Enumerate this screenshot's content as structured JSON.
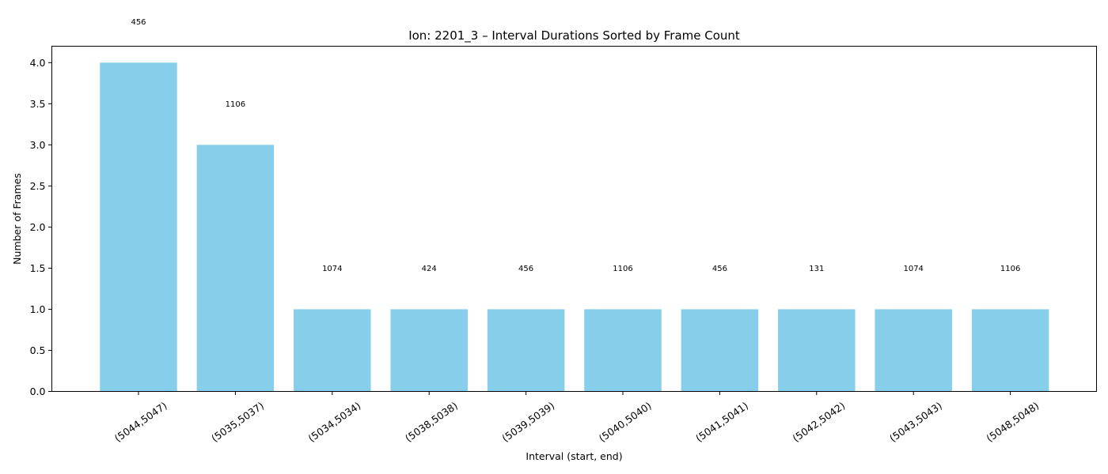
{
  "chart_data": {
    "type": "bar",
    "title": "Ion: 2201_3 – Interval Durations Sorted by Frame Count",
    "xlabel": "Interval (start, end)",
    "ylabel": "Number of Frames",
    "categories": [
      "(5044,5047)",
      "(5035,5037)",
      "(5034,5034)",
      "(5038,5038)",
      "(5039,5039)",
      "(5040,5040)",
      "(5041,5041)",
      "(5042,5042)",
      "(5043,5043)",
      "(5048,5048)"
    ],
    "values": [
      4,
      3,
      1,
      1,
      1,
      1,
      1,
      1,
      1,
      1
    ],
    "data_labels": [
      "456",
      "1106",
      "1074",
      "424",
      "456",
      "1106",
      "456",
      "131",
      "1074",
      "1106"
    ],
    "yticks": [
      "0.0",
      "0.5",
      "1.0",
      "1.5",
      "2.0",
      "2.5",
      "3.0",
      "3.5",
      "4.0"
    ],
    "ylim": [
      0,
      4.2
    ],
    "bar_color": "#87ceeb",
    "grid": false,
    "legend": "none"
  }
}
